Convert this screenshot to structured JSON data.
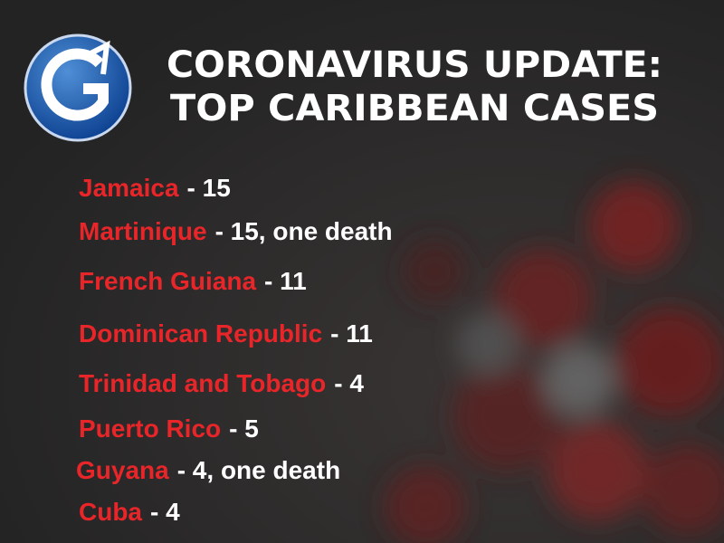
{
  "header": {
    "title_lines": [
      "CORONAVIRUS UPDATE:",
      "TOP CARIBBEAN CASES"
    ]
  },
  "items": [
    {
      "country": "Jamaica",
      "detail": "- 15"
    },
    {
      "country": "Martinique",
      "detail": "- 15, one death"
    },
    {
      "country": "French Guiana",
      "detail": "- 11"
    },
    {
      "country": "Dominican Republic",
      "detail": "- 11"
    },
    {
      "country": "Trinidad and Tobago",
      "detail": "- 4"
    },
    {
      "country": "Puerto Rico",
      "detail": "- 5"
    },
    {
      "country": "Guyana",
      "detail": "- 4, one death"
    },
    {
      "country": "Cuba",
      "detail": "- 4"
    }
  ]
}
